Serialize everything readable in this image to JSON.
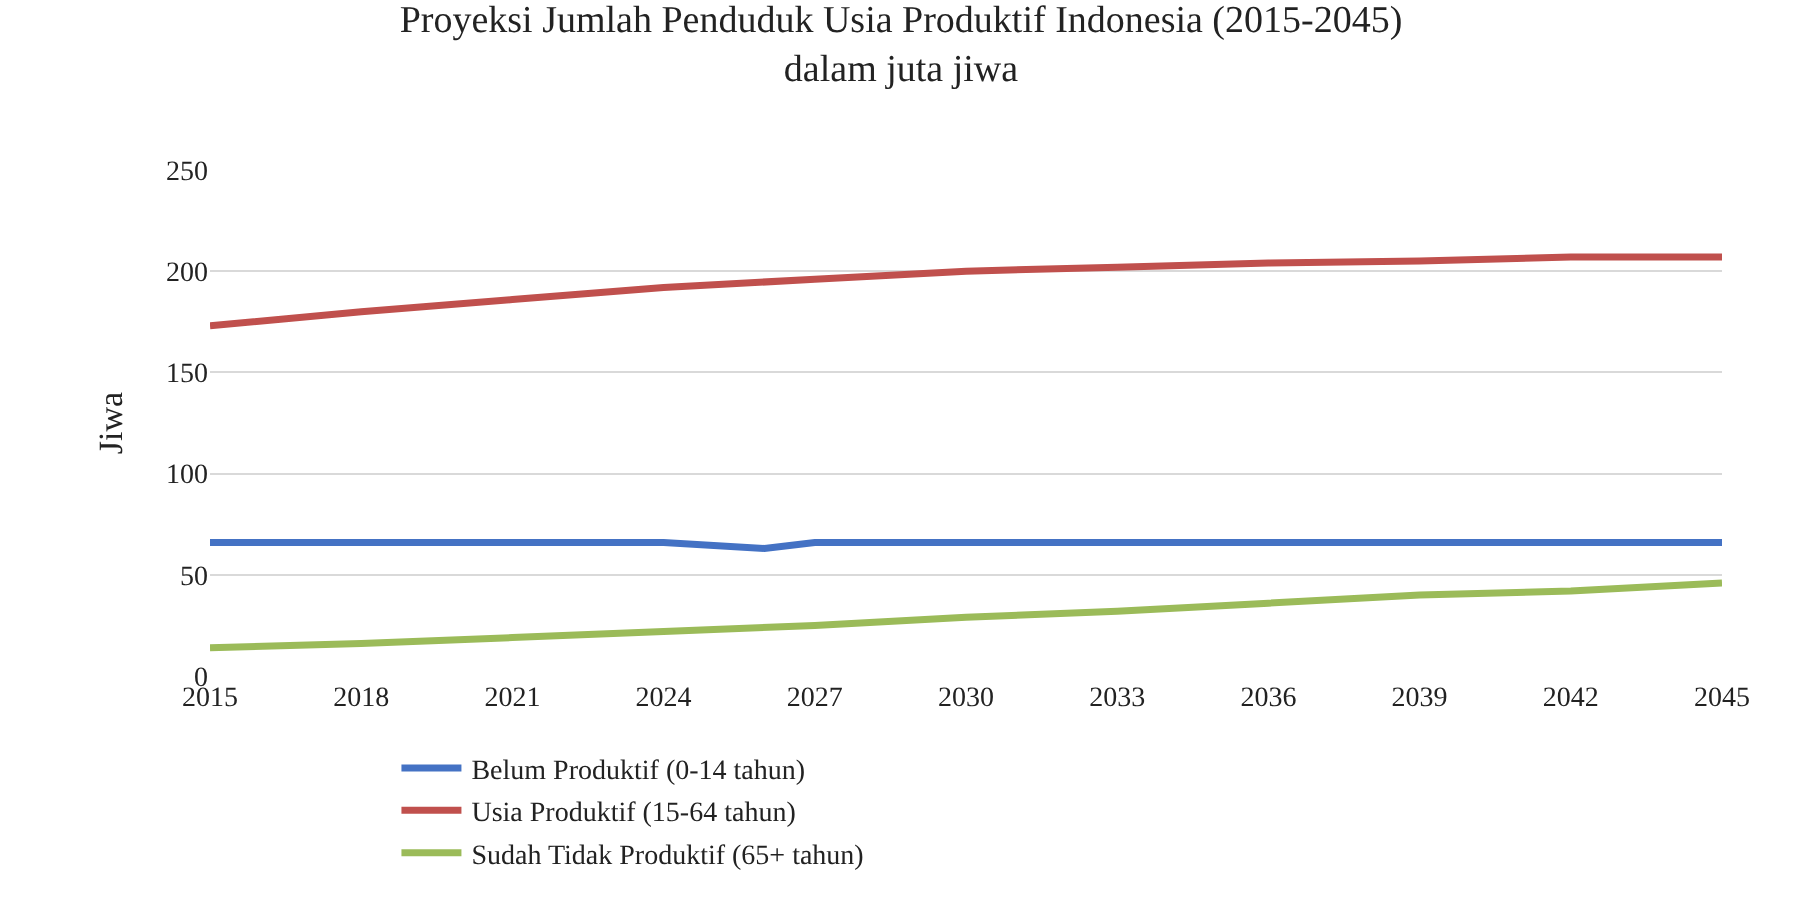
{
  "chart_data": {
    "type": "line",
    "title": "Proyeksi Jumlah Penduduk Usia Produktif Indonesia (2015-2045)\ndalam juta jiwa",
    "ylabel": "Jiwa",
    "x": [
      2015,
      2018,
      2021,
      2024,
      2027,
      2030,
      2033,
      2036,
      2039,
      2042,
      2045
    ],
    "series": [
      {
        "name": "Belum Produktif (0-14 tahun)",
        "color": "#4472c4",
        "x": [
          2015,
          2018,
          2021,
          2024,
          2026,
          2027,
          2030,
          2033,
          2036,
          2039,
          2042,
          2045
        ],
        "values": [
          66,
          66,
          66,
          66,
          63,
          66,
          66,
          66,
          66,
          66,
          66,
          66
        ]
      },
      {
        "name": "Usia Produktif (15-64 tahun)",
        "color": "#c0504d",
        "values": [
          173,
          180,
          186,
          192,
          196,
          200,
          202,
          204,
          205,
          207,
          207
        ]
      },
      {
        "name": "Sudah Tidak Produktif (65+ tahun)",
        "color": "#9bbb59",
        "values": [
          14,
          16,
          19,
          22,
          25,
          29,
          32,
          36,
          40,
          42,
          46
        ]
      }
    ],
    "xlim": [
      2015,
      2045
    ],
    "xticks": [
      2015,
      2018,
      2021,
      2024,
      2027,
      2030,
      2033,
      2036,
      2039,
      2042,
      2045
    ],
    "ylim": [
      0,
      250
    ],
    "yticks": [
      0,
      50,
      100,
      150,
      200,
      250
    ],
    "grid": "y",
    "legend": "bottom",
    "marker": "none",
    "line_style": "solid"
  }
}
